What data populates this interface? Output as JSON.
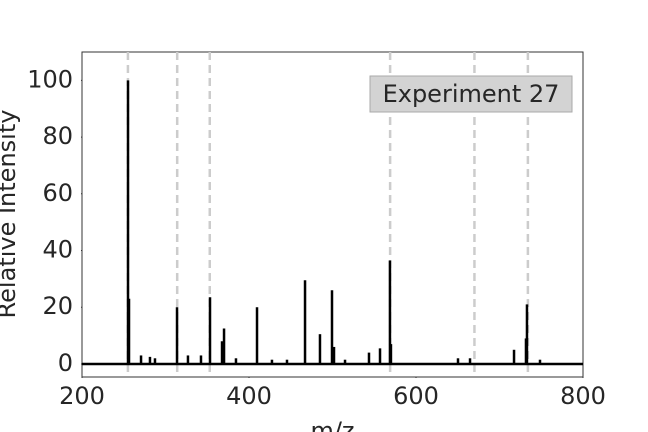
{
  "chart_data": {
    "type": "stick",
    "xlabel": "m/z",
    "ylabel": "Relative Intensity",
    "annotation": "Experiment 27",
    "x": [
      255.1,
      256.3,
      270.7,
      281.4,
      287.4,
      313.8,
      326.9,
      342.5,
      353.3,
      367.7,
      370.1,
      384.4,
      409.6,
      427.5,
      445.5,
      467.1,
      485,
      499.4,
      501.8,
      515,
      543.7,
      556.9,
      568.8,
      570,
      650.3,
      664.7,
      717.4,
      731.7,
      732.9,
      748.5
    ],
    "values": [
      100,
      23,
      3,
      2.5,
      2,
      20,
      3,
      3,
      23.5,
      8,
      12.5,
      2,
      20,
      1.5,
      1.5,
      29.5,
      10.5,
      26,
      6,
      1.5,
      4,
      5.5,
      36.5,
      7,
      2,
      2,
      5,
      9,
      21,
      1.5
    ],
    "color": "#000000",
    "reference_lines": [
      255,
      314,
      353,
      569,
      670,
      734
    ],
    "xlim": [
      200,
      800
    ],
    "ylim": [
      -4.6,
      110
    ],
    "xticks": [
      200,
      400,
      600,
      800
    ],
    "yticks": [
      0,
      20,
      40,
      60,
      80,
      100
    ]
  }
}
